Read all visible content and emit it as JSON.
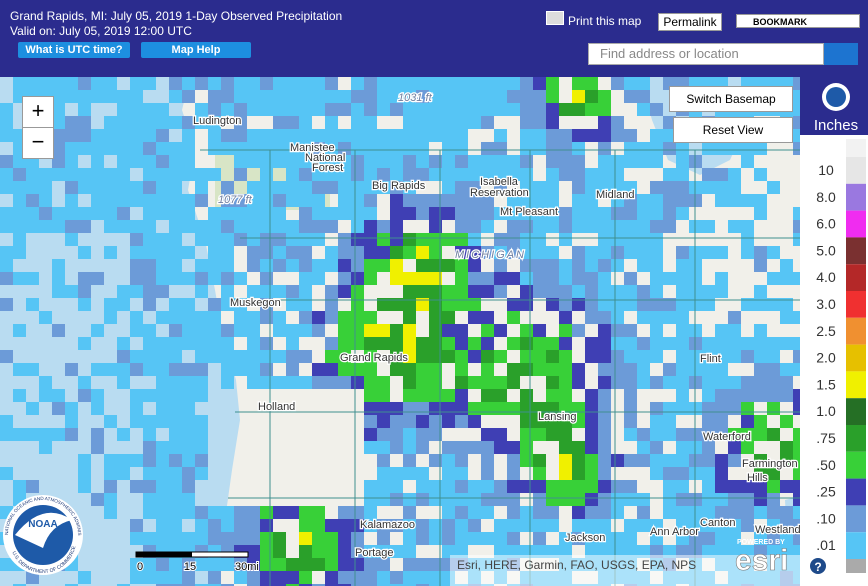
{
  "header": {
    "title": "Grand Rapids, MI: July 05, 2019 1-Day Observed Precipitation",
    "valid": "Valid on: July 05, 2019 12:00 UTC",
    "buttons": [
      "What is UTC time?",
      "Map Help"
    ]
  },
  "toolbar": {
    "print": "Print this map",
    "permalink": "Permalink",
    "bookmark": "BOOKMARK",
    "search_placeholder": "Find address or location"
  },
  "map": {
    "zoom_in": "+",
    "zoom_out": "−",
    "switch_basemap": "Switch Basemap",
    "reset_view": "Reset View",
    "places": [
      "Ludington",
      "Manistee",
      "National",
      "Forest",
      "Big Rapids",
      "Isabella",
      "Reservation",
      "Mt Pleasant",
      "Midland",
      "Muskegon",
      "MICHIGAN",
      "Grand Rapids",
      "Holland",
      "Lansing",
      "Flint",
      "Waterford",
      "Farmington",
      "Hills",
      "Kalamazoo",
      "Portage",
      "Jackson",
      "Ann Arbor",
      "Canton",
      "Westland",
      "1031 ft",
      "1077 ft"
    ],
    "scale": [
      "0",
      "15",
      "30mi"
    ],
    "attribution": "Esri, HERE, Garmin, FAO, USGS, EPA, NPS",
    "powered_by": "POWERED BY",
    "esri": "esri",
    "help": "?"
  },
  "logo": {
    "name": "NOAA",
    "ring_top": "NATIONAL OCEANIC AND ATMOSPHERIC ADMINISTRATION",
    "ring_bottom": "U.S. DEPARTMENT OF COMMERCE"
  },
  "legend": {
    "title": "Inches",
    "items": [
      {
        "label": "10",
        "color": "#e6e6e6"
      },
      {
        "label": "8.0",
        "color": "#9a78e0"
      },
      {
        "label": "6.0",
        "color": "#f02cf0"
      },
      {
        "label": "5.0",
        "color": "#7a3030"
      },
      {
        "label": "4.0",
        "color": "#b42828"
      },
      {
        "label": "3.0",
        "color": "#f03030"
      },
      {
        "label": "2.5",
        "color": "#f09030"
      },
      {
        "label": "2.0",
        "color": "#e6c000"
      },
      {
        "label": "1.5",
        "color": "#f0f000"
      },
      {
        "label": "1.0",
        "color": "#256f25"
      },
      {
        "label": ".75",
        "color": "#2aa02a"
      },
      {
        "label": ".50",
        "color": "#38d038"
      },
      {
        "label": ".25",
        "color": "#3f3fb4"
      },
      {
        "label": ".10",
        "color": "#6c9bd8"
      },
      {
        "label": ".01",
        "color": "#56c5f5"
      }
    ]
  }
}
